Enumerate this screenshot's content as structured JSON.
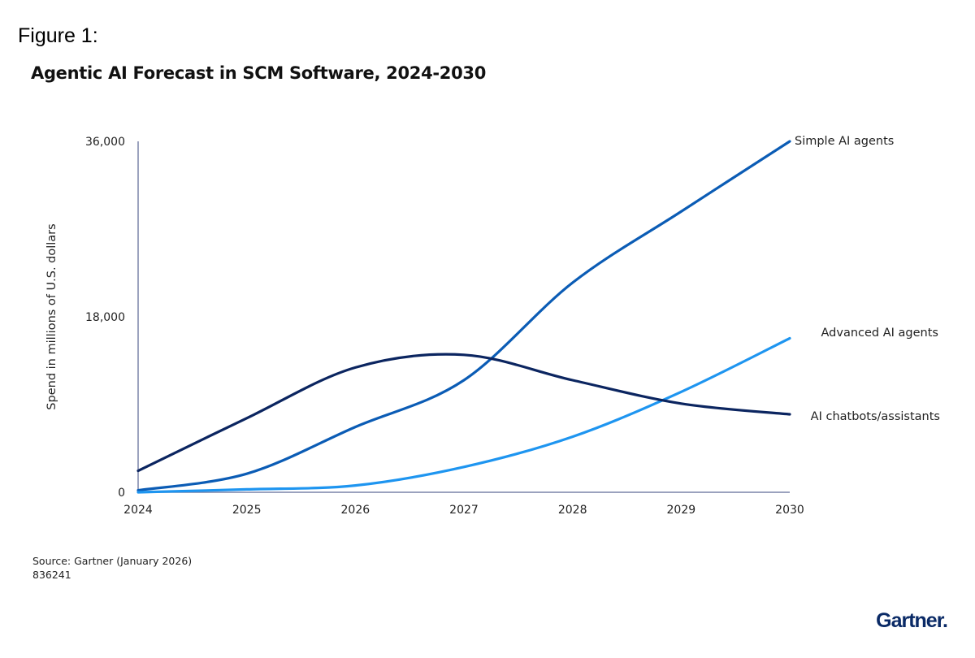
{
  "figure_label": "Figure 1:",
  "chart_data": {
    "type": "line",
    "title": "Agentic AI Forecast in SCM Software, 2024-2030",
    "xlabel": "",
    "ylabel": "Spend in millions of U.S. dollars",
    "x": [
      2024,
      2025,
      2026,
      2027,
      2028,
      2029,
      2030
    ],
    "x_tick_labels": [
      "2024",
      "2025",
      "2026",
      "2027",
      "2028",
      "2029",
      "2030"
    ],
    "ylim": [
      0,
      36000
    ],
    "y_ticks": [
      0,
      18000,
      36000
    ],
    "y_tick_labels": [
      "0",
      "18,000",
      "36,000"
    ],
    "grid": false,
    "legend": "direct labels at right end of lines",
    "series": [
      {
        "name": "Simple AI agents",
        "color": "#0b5cb5",
        "values": [
          200,
          1900,
          6700,
          11500,
          21500,
          28800,
          36000
        ]
      },
      {
        "name": "Advanced AI agents",
        "color": "#1e95f0",
        "values": [
          0,
          300,
          700,
          2600,
          5700,
          10300,
          15800
        ]
      },
      {
        "name": "AI chatbots/assistants",
        "color": "#0b2560",
        "values": [
          2200,
          7600,
          12800,
          14100,
          11500,
          9100,
          8000
        ]
      }
    ]
  },
  "footer": {
    "source": "Source: Gartner (January 2026)",
    "id": "836241",
    "logo": "Gartner."
  }
}
